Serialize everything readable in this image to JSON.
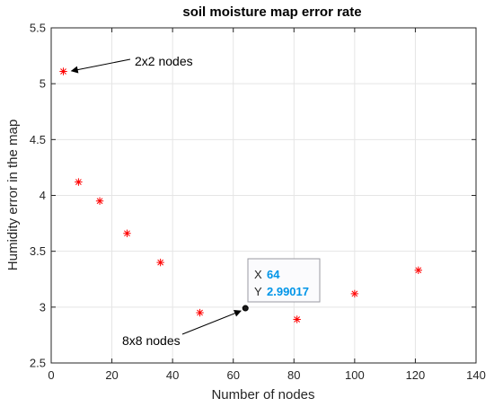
{
  "chart_data": {
    "type": "scatter",
    "title": "soil moisture map error rate",
    "xlabel": "Number of nodes",
    "ylabel": "Humidity error in the map",
    "xlim": [
      0,
      140
    ],
    "ylim": [
      2.5,
      5.5
    ],
    "xticks": [
      "0",
      "20",
      "40",
      "60",
      "80",
      "100",
      "120",
      "140"
    ],
    "yticks": [
      "2.5",
      "3",
      "3.5",
      "4",
      "4.5",
      "5",
      "5.5"
    ],
    "grid": true,
    "marker": "asterisk",
    "marker_color": "#ff0000",
    "x": [
      4,
      9,
      16,
      25,
      36,
      49,
      81,
      100,
      121
    ],
    "y": [
      5.11,
      4.12,
      3.95,
      3.66,
      3.4,
      2.95,
      2.89,
      3.12,
      3.33
    ],
    "annotations": [
      {
        "text": "2x2 nodes",
        "x": 4,
        "y": 5.11
      },
      {
        "text": "8x8 nodes",
        "x": 64,
        "y": 2.99017
      }
    ],
    "datatip": {
      "x_key": "X",
      "x_value": "64",
      "y_key": "Y",
      "y_value": "2.99017",
      "value_color": "#0095e8"
    }
  }
}
